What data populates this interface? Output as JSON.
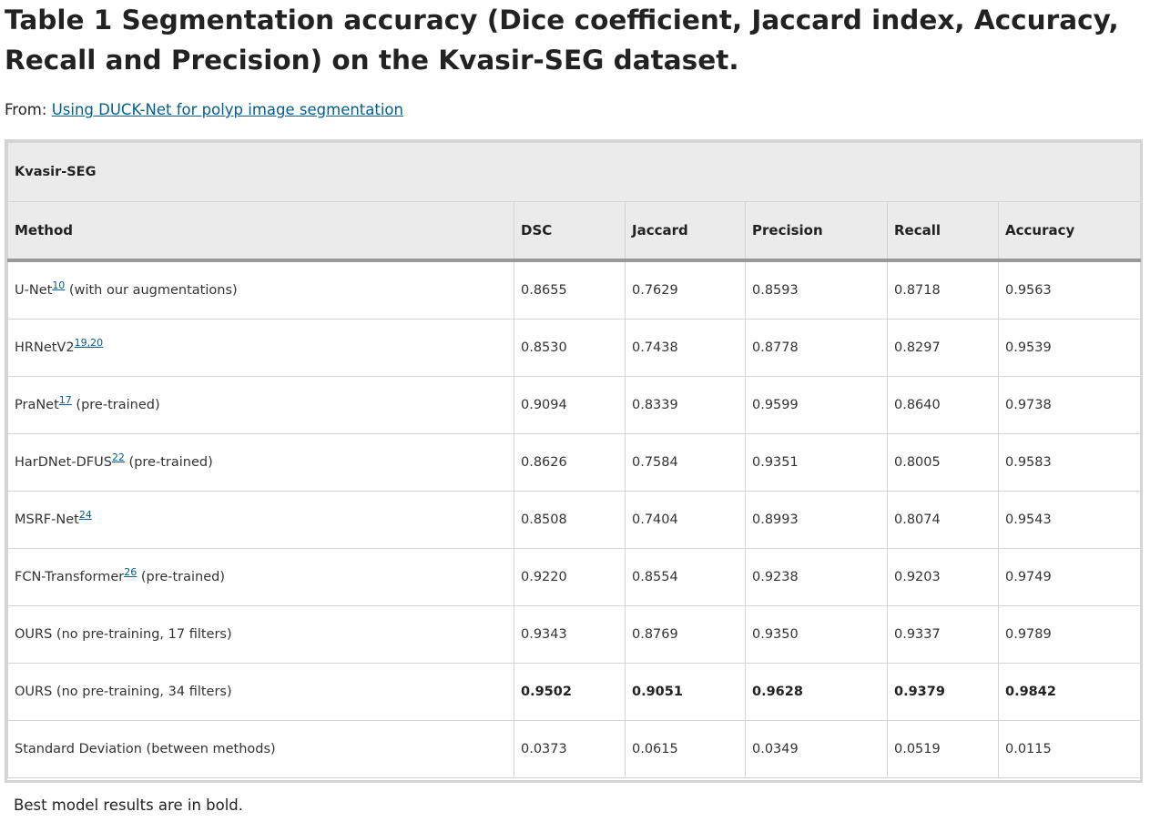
{
  "title": "Table 1 Segmentation accuracy (Dice coefficient, Jaccard index, Accuracy, Recall and Precision) on the Kvasir-SEG dataset.",
  "from": {
    "label": "From:",
    "link_text": "Using DUCK-Net for polyp image segmentation"
  },
  "table": {
    "caption": "Kvasir-SEG",
    "headers": [
      "Method",
      "DSC",
      "Jaccard",
      "Precision",
      "Recall",
      "Accuracy"
    ],
    "rows": [
      {
        "method": "U-Net",
        "ref": "10",
        "suffix": " (with our augmentations)",
        "values": [
          "0.8655",
          "0.7629",
          "0.8593",
          "0.8718",
          "0.9563"
        ],
        "bold": false
      },
      {
        "method": "HRNetV2",
        "ref": "19,20",
        "suffix": "",
        "values": [
          "0.8530",
          "0.7438",
          "0.8778",
          "0.8297",
          "0.9539"
        ],
        "bold": false
      },
      {
        "method": "PraNet",
        "ref": "17",
        "suffix": " (pre-trained)",
        "values": [
          "0.9094",
          "0.8339",
          "0.9599",
          "0.8640",
          "0.9738"
        ],
        "bold": false
      },
      {
        "method": "HarDNet-DFUS",
        "ref": "22",
        "suffix": " (pre-trained)",
        "values": [
          "0.8626",
          "0.7584",
          "0.9351",
          "0.8005",
          "0.9583"
        ],
        "bold": false
      },
      {
        "method": "MSRF-Net",
        "ref": "24",
        "suffix": "",
        "values": [
          "0.8508",
          "0.7404",
          "0.8993",
          "0.8074",
          "0.9543"
        ],
        "bold": false
      },
      {
        "method": "FCN-Transformer",
        "ref": "26",
        "suffix": " (pre-trained)",
        "values": [
          "0.9220",
          "0.8554",
          "0.9238",
          "0.9203",
          "0.9749"
        ],
        "bold": false
      },
      {
        "method": "OURS (no pre-training, 17 filters)",
        "ref": "",
        "suffix": "",
        "values": [
          "0.9343",
          "0.8769",
          "0.9350",
          "0.9337",
          "0.9789"
        ],
        "bold": false
      },
      {
        "method": "OURS (no pre-training, 34 filters)",
        "ref": "",
        "suffix": "",
        "values": [
          "0.9502",
          "0.9051",
          "0.9628",
          "0.9379",
          "0.9842"
        ],
        "bold": true
      },
      {
        "method": "Standard Deviation (between methods)",
        "ref": "",
        "suffix": "",
        "values": [
          "0.0373",
          "0.0615",
          "0.0349",
          "0.0519",
          "0.0115"
        ],
        "bold": false
      }
    ]
  },
  "footnote": "Best model results are in bold.",
  "colors": {
    "link": "#025e8d",
    "header_bg": "#ebebeb",
    "border": "#d5d5d5",
    "header_rule": "#999999"
  }
}
